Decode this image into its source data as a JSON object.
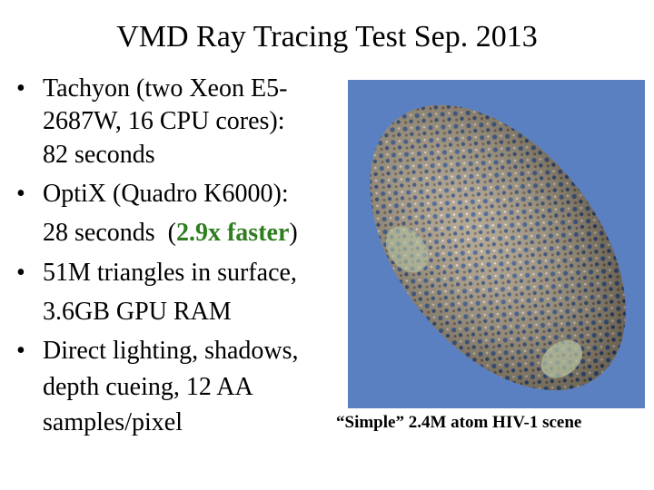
{
  "title": "VMD Ray Tracing Test Sep. 2013",
  "bullets": [
    {
      "lines": [
        "Tachyon (two Xeon E5-",
        "2687W, 16 CPU cores):",
        "82 seconds"
      ]
    },
    {
      "lines": [
        "OptiX (Quadro K6000):",
        "28 seconds  ("
      ],
      "highlight": "2.9x faster",
      "suffix": ")"
    },
    {
      "lines": [
        "51M triangles in surface,",
        "3.6GB GPU RAM"
      ]
    },
    {
      "lines": [
        "Direct lighting, shadows,",
        "depth cueing, 12 AA",
        "samples/pixel"
      ]
    }
  ],
  "caption": "“Simple” 2.4M atom HIV-1 scene"
}
